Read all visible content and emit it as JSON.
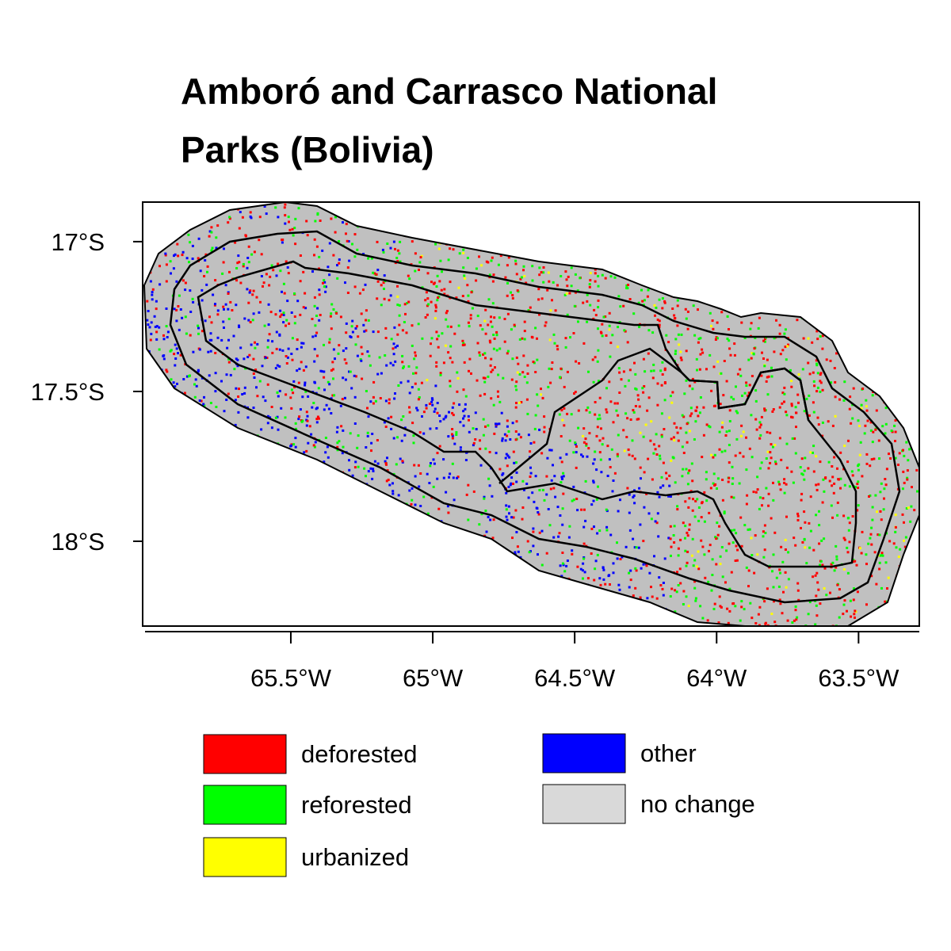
{
  "title": "Amboró and Carrasco National Parks (Bolivia)",
  "xlim": [
    -66.022,
    -63.286
  ],
  "ylim": [
    -18.283,
    -16.868
  ],
  "xticks": [
    {
      "value": -65.5,
      "label": "65.5°W"
    },
    {
      "value": -65,
      "label": "65°W"
    },
    {
      "value": -64.5,
      "label": "64.5°W"
    },
    {
      "value": -64,
      "label": "64°W"
    },
    {
      "value": -63.5,
      "label": "63.5°W"
    }
  ],
  "yticks": [
    {
      "value": -17,
      "label": "17°S"
    },
    {
      "value": -17.5,
      "label": "17.5°S"
    },
    {
      "value": -18,
      "label": "18°S"
    }
  ],
  "legend": [
    {
      "label": "deforested",
      "color": "#ff0000"
    },
    {
      "label": "reforested",
      "color": "#00ff00"
    },
    {
      "label": "urbanized",
      "color": "#ffff00"
    },
    {
      "label": "other",
      "color": "#0000ff"
    },
    {
      "label": "no change",
      "color": "#d9d9d9"
    }
  ]
}
